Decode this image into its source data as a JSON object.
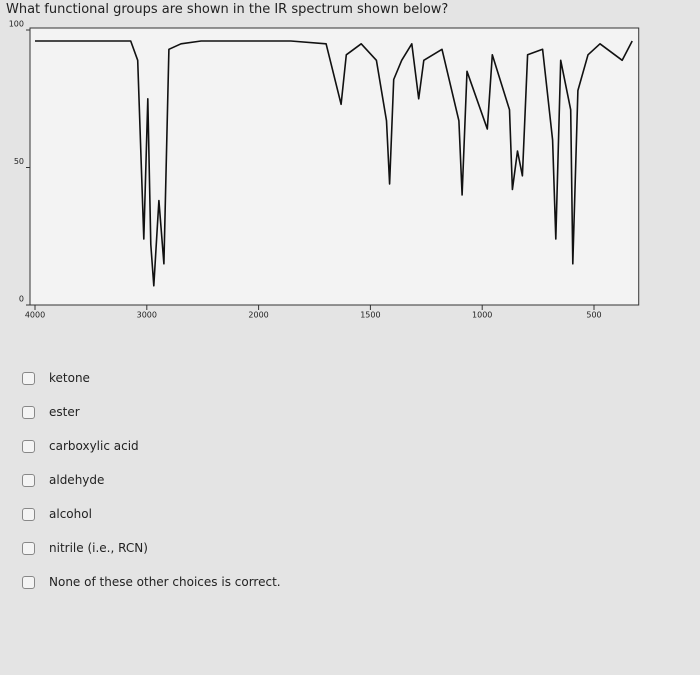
{
  "question": "What functional groups are shown in the IR spectrum shown below?",
  "chart_data": {
    "type": "line",
    "x": [
      4000,
      3144,
      3081,
      3027,
      2991,
      2964,
      2937,
      2892,
      2847,
      2802,
      2694,
      2514,
      1856,
      1698,
      1631,
      1608,
      1541,
      1473,
      1428,
      1414,
      1396,
      1360,
      1315,
      1284,
      1261,
      1180,
      1104,
      1090,
      1068,
      977,
      955,
      878,
      865,
      842,
      820,
      797,
      730,
      685,
      671,
      649,
      604,
      595,
      572,
      527,
      473,
      374,
      329
    ],
    "values": [
      96,
      96,
      89,
      24,
      75,
      22,
      7,
      38,
      15,
      93,
      95,
      96,
      96,
      95,
      73,
      91,
      95,
      89,
      67,
      44,
      82,
      89,
      95,
      75,
      89,
      93,
      67,
      40,
      85,
      64,
      91,
      71,
      42,
      56,
      47,
      91,
      93,
      60,
      24,
      89,
      71,
      15,
      78,
      91,
      95,
      89,
      96
    ],
    "color": "#111111",
    "xlim": [
      4000,
      300
    ],
    "xticks": [
      4000,
      3000,
      2000,
      1500,
      1000,
      500
    ],
    "ylim": [
      0,
      100
    ],
    "yticks": [
      0,
      50,
      100
    ]
  },
  "options": [
    "ketone",
    "ester",
    "carboxylic acid",
    "aldehyde",
    "alcohol",
    "nitrile (i.e., RCN)",
    "None of these other choices is correct."
  ]
}
